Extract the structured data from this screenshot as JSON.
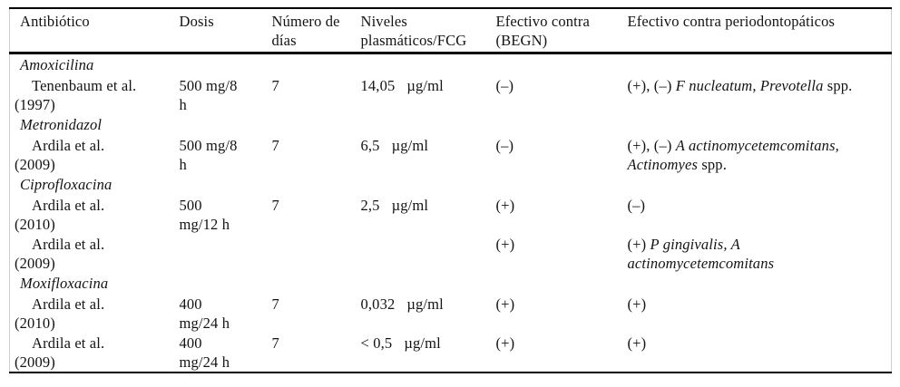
{
  "table": {
    "columns": [
      {
        "label": "Antibiótico"
      },
      {
        "label": "Dosis"
      },
      {
        "label": "Número de\ndías"
      },
      {
        "label": "Niveles\nplasmáticos/FCG"
      },
      {
        "label": "Efectivo contra\n(BEGN)"
      },
      {
        "label": "Efectivo contra periodontopáticos"
      }
    ],
    "rows": [
      {
        "type": "group",
        "name": "Amoxicilina"
      },
      {
        "type": "entry",
        "author": "Tenenbaum et al.\n(1997)",
        "dose": "500 mg/8\nh",
        "days": "7",
        "level_value": "14,05",
        "level_unit": "µg/ml",
        "begn": "(–)",
        "periodonto": [
          {
            "t": "(+), (–) "
          },
          {
            "t": "F nucleatum, Prevotella",
            "i": true
          },
          {
            "t": " spp."
          }
        ]
      },
      {
        "type": "group",
        "name": "Metronidazol"
      },
      {
        "type": "entry",
        "author": "Ardila et al.\n(2009)",
        "dose": "500 mg/8\nh",
        "days": "7",
        "level_value": "6,5",
        "level_unit": "µg/ml",
        "begn": "(–)",
        "periodonto": [
          {
            "t": "(+), (–) "
          },
          {
            "t": "A actinomycetemcomitans,\nActinomyes",
            "i": true
          },
          {
            "t": " spp."
          }
        ]
      },
      {
        "type": "group",
        "name": "Ciprofloxacina"
      },
      {
        "type": "entry",
        "author": "Ardila et al.\n(2010)",
        "dose": "500\nmg/12 h",
        "days": "7",
        "level_value": "2,5",
        "level_unit": "µg/ml",
        "begn": "(+)",
        "periodonto": [
          {
            "t": "(–)"
          }
        ]
      },
      {
        "type": "entry",
        "author": "Ardila et al.\n(2009)",
        "dose": "",
        "days": "",
        "level_value": "",
        "level_unit": "",
        "begn": "(+)",
        "periodonto": [
          {
            "t": "(+) "
          },
          {
            "t": "P gingivalis, A\nactinomycetemcomitans",
            "i": true
          }
        ]
      },
      {
        "type": "group",
        "name": "Moxifloxacina"
      },
      {
        "type": "entry",
        "author": "Ardila et al.\n(2010)",
        "dose": "400\nmg/24 h",
        "days": "7",
        "level_value": "0,032",
        "level_unit": "µg/ml",
        "begn": "(+)",
        "periodonto": [
          {
            "t": "(+)"
          }
        ]
      },
      {
        "type": "entry",
        "author": "Ardila et al.\n(2009)",
        "dose": "400\nmg/24 h",
        "days": "7",
        "level_value": "< 0,5",
        "level_unit": "µg/ml",
        "begn": "(+)",
        "periodonto": [
          {
            "t": "(+)"
          }
        ]
      }
    ]
  }
}
